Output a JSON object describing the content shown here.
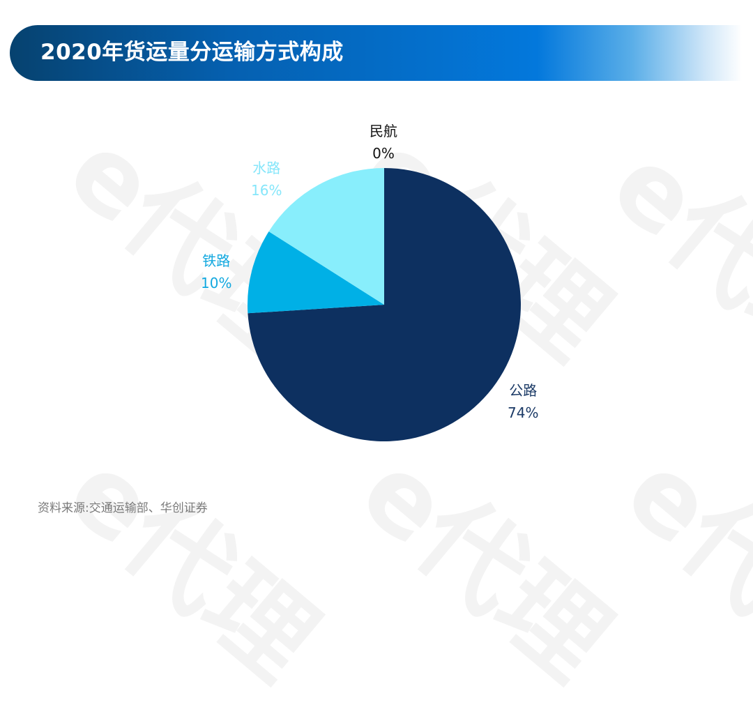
{
  "header": {
    "title": "2020年货运量分运输方式构成"
  },
  "watermark": {
    "text": "e代理"
  },
  "chart_data": {
    "type": "pie",
    "title": "2020年货运量分运输方式构成",
    "categories": [
      "公路",
      "铁路",
      "水路",
      "民航"
    ],
    "values": [
      74,
      10,
      16,
      0
    ],
    "unit": "%",
    "colors": [
      "#0d3060",
      "#00b0e6",
      "#88eefc",
      "#111111"
    ],
    "start_angle": "12 o'clock, clockwise",
    "labels": [
      {
        "name": "公路",
        "value": "74%",
        "color": "#1b3a66"
      },
      {
        "name": "铁路",
        "value": "10%",
        "color": "#12a8df"
      },
      {
        "name": "水路",
        "value": "16%",
        "color": "#86e6fa"
      },
      {
        "name": "民航",
        "value": "0%",
        "color": "#111111"
      }
    ],
    "legend": "none (direct labels)"
  },
  "footer": {
    "source": "资料来源:交通运输部、华创证券"
  }
}
